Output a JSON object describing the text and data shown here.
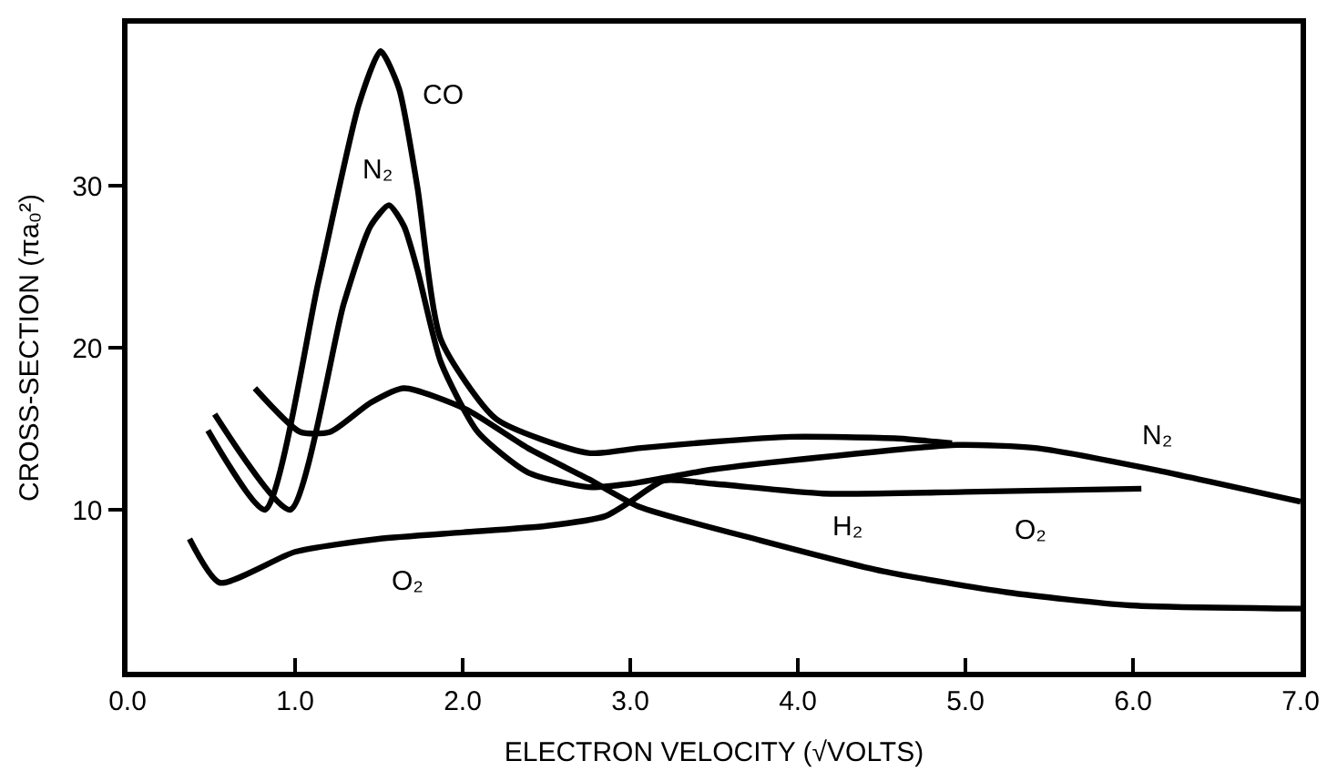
{
  "chart_data": {
    "type": "line",
    "xlabel": "ELECTRON VELOCITY (√VOLTS)",
    "ylabel": "CROSS-SECTION (πa₀²)",
    "xlim": [
      0,
      7
    ],
    "ylim": [
      0,
      40
    ],
    "xticks": [
      {
        "value": 0,
        "label": "0.0"
      },
      {
        "value": 1,
        "label": "1.0"
      },
      {
        "value": 2,
        "label": "2.0"
      },
      {
        "value": 3,
        "label": "3.0"
      },
      {
        "value": 4,
        "label": "4.0"
      },
      {
        "value": 5,
        "label": "5.0"
      },
      {
        "value": 6,
        "label": "6.0"
      },
      {
        "value": 7,
        "label": "7.0"
      }
    ],
    "yticks": [
      10,
      20,
      30
    ],
    "legend": false,
    "marker": "none",
    "line_style": "solid",
    "series": [
      {
        "name": "CO",
        "color": "#000000",
        "x": [
          0.48,
          0.82,
          1.14,
          1.38,
          1.51,
          1.62,
          1.73,
          1.87,
          2.2,
          2.75,
          3.05,
          3.5,
          3.96,
          4.6,
          4.92
        ],
        "values": [
          14.9,
          10.0,
          24.1,
          35.0,
          38.3,
          36.0,
          29.9,
          20.5,
          15.6,
          13.5,
          13.8,
          14.2,
          14.5,
          14.4,
          14.1
        ]
      },
      {
        "name": "N₂",
        "color": "#000000",
        "x": [
          0.52,
          0.97,
          1.29,
          1.45,
          1.56,
          1.65,
          1.73,
          1.87,
          2.09,
          2.39,
          2.75,
          3.0,
          3.5,
          4.2,
          4.95,
          5.43,
          6.16,
          7.0
        ],
        "values": [
          15.9,
          10.0,
          22.7,
          27.5,
          28.8,
          27.5,
          24.8,
          19.1,
          14.8,
          12.3,
          11.4,
          11.6,
          12.5,
          13.3,
          14.0,
          13.8,
          12.4,
          10.5
        ]
      },
      {
        "name": "H₂",
        "color": "#000000",
        "x": [
          0.76,
          1.03,
          1.21,
          1.45,
          1.65,
          2.02,
          2.39,
          2.75,
          3.05,
          3.78,
          4.51,
          5.25,
          5.98,
          7.0
        ],
        "values": [
          17.5,
          14.8,
          14.8,
          16.6,
          17.5,
          16.2,
          13.8,
          11.9,
          10.2,
          8.1,
          6.2,
          4.9,
          4.1,
          3.9
        ]
      },
      {
        "name": "O₂",
        "color": "#000000",
        "x": [
          0.37,
          0.55,
          1.0,
          1.5,
          2.0,
          2.5,
          2.85,
          3.0,
          3.2,
          3.5,
          4.15,
          5.0,
          6.05
        ],
        "values": [
          8.2,
          5.5,
          7.4,
          8.2,
          8.6,
          9.0,
          9.6,
          10.5,
          11.8,
          11.6,
          11.0,
          11.1,
          11.3
        ]
      }
    ],
    "annotations": [
      "N₂",
      "O₂"
    ]
  }
}
